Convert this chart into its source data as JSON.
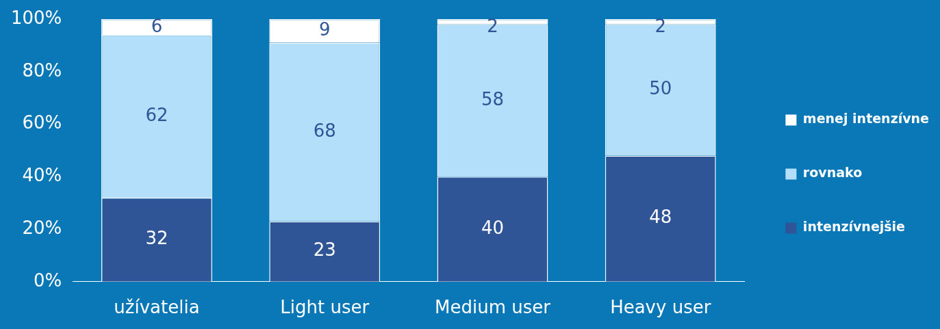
{
  "chart_data": {
    "type": "bar",
    "stacked": true,
    "categories": [
      "užívatelia",
      "Light user",
      "Medium user",
      "Heavy user"
    ],
    "series": [
      {
        "name": "intenzívnejšie",
        "color": "#2f5597",
        "values": [
          32,
          23,
          40,
          48
        ]
      },
      {
        "name": "rovnako",
        "color": "#b4dffb",
        "values": [
          62,
          68,
          58,
          50
        ]
      },
      {
        "name": "menej intenzívne",
        "color": "#ffffff",
        "values": [
          6,
          9,
          2,
          2
        ]
      }
    ],
    "ylim": [
      0,
      100
    ],
    "yticks": [
      {
        "value": 0,
        "label": "0%"
      },
      {
        "value": 20,
        "label": "20%"
      },
      {
        "value": 40,
        "label": "40%"
      },
      {
        "value": 60,
        "label": "60%"
      },
      {
        "value": 80,
        "label": "80%"
      },
      {
        "value": 100,
        "label": "100%"
      }
    ],
    "grid": false,
    "legend": "right",
    "data_labels": true
  }
}
